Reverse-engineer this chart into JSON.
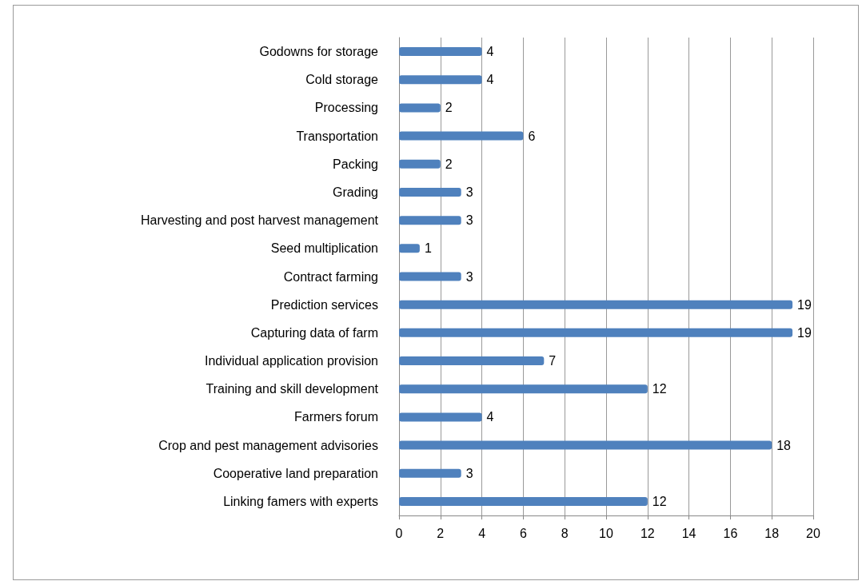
{
  "chart_data": {
    "type": "bar",
    "orientation": "horizontal",
    "categories": [
      "Godowns for storage",
      "Cold storage",
      "Processing",
      "Transportation",
      "Packing",
      "Grading",
      "Harvesting and post harvest management",
      "Seed multiplication",
      "Contract farming",
      "Prediction services",
      "Capturing data of farm",
      "Individual application provision",
      "Training and skill development",
      "Farmers forum",
      "Crop and pest management advisories",
      "Cooperative land preparation",
      "Linking famers with experts"
    ],
    "values": [
      4,
      4,
      2,
      6,
      2,
      3,
      3,
      1,
      3,
      19,
      19,
      7,
      12,
      4,
      18,
      3,
      12
    ],
    "color": "#4f81bd",
    "xlim": [
      0,
      20
    ],
    "xticks": [
      0,
      2,
      4,
      6,
      8,
      10,
      12,
      14,
      16,
      18,
      20
    ],
    "grid": "x",
    "data_labels": true
  }
}
